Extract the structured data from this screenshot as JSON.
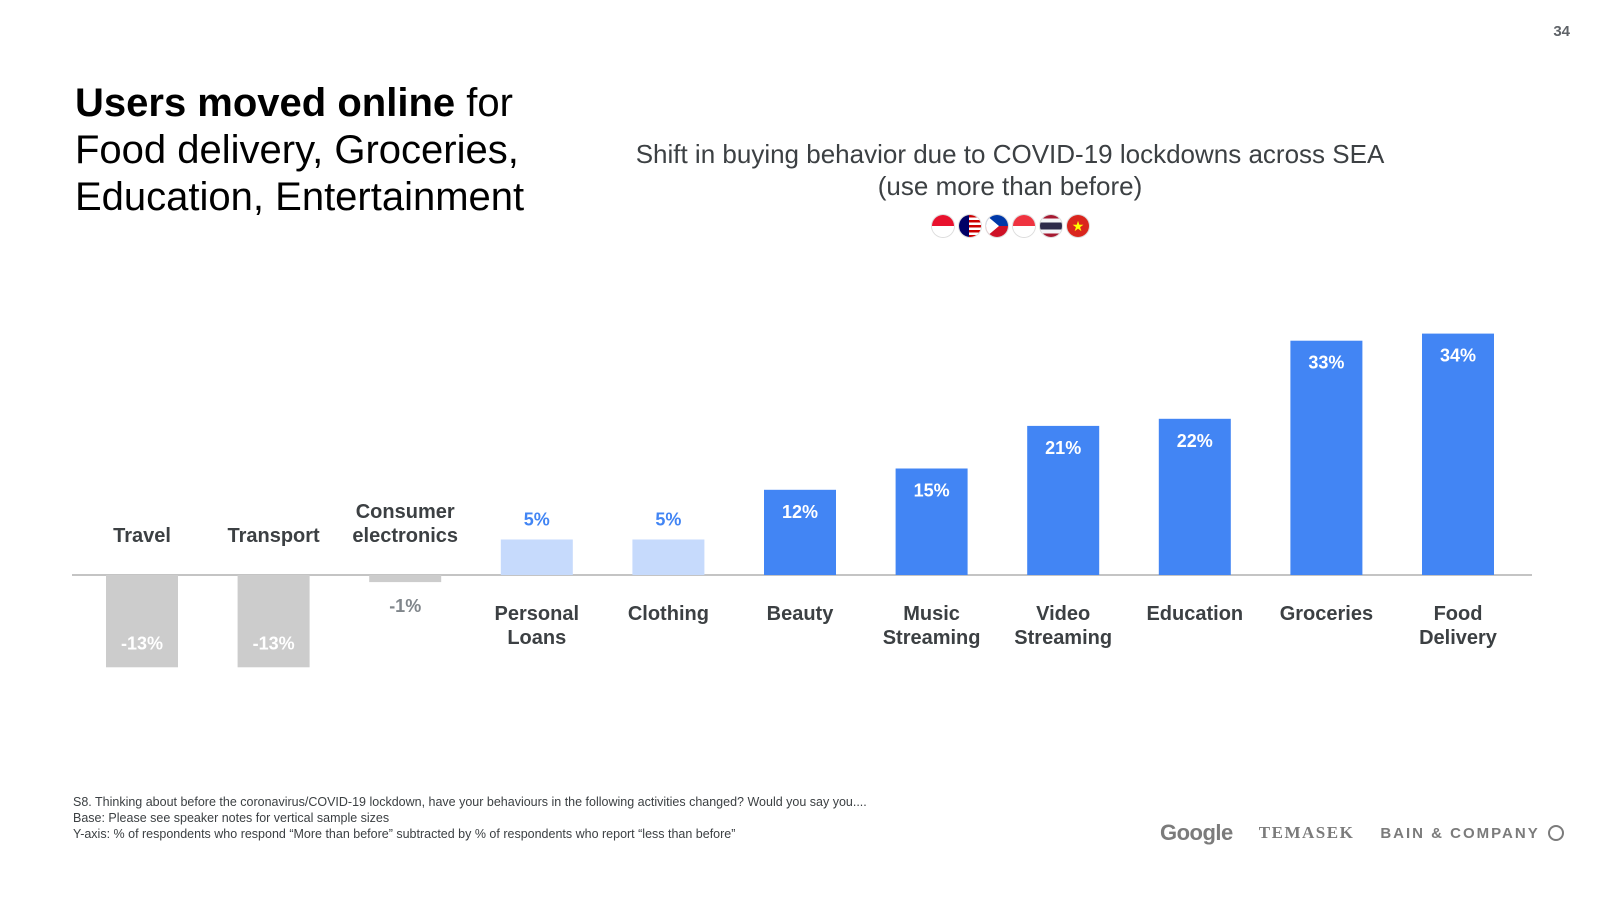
{
  "page": {
    "number": "34"
  },
  "headline": {
    "bold_part": "Users moved online",
    "rest": " for Food delivery, Groceries, Education, Entertainment"
  },
  "flags": [
    {
      "name": "indonesia-flag-icon",
      "colors": [
        "#e8112d",
        "#ffffff"
      ]
    },
    {
      "name": "malaysia-flag-icon",
      "colors": [
        "#cc0000",
        "#ffffff",
        "#010066"
      ]
    },
    {
      "name": "philippines-flag-icon",
      "colors": [
        "#0038a8",
        "#ce1126",
        "#fcd116"
      ]
    },
    {
      "name": "singapore-flag-icon",
      "colors": [
        "#ef3340",
        "#ffffff"
      ]
    },
    {
      "name": "thailand-flag-icon",
      "colors": [
        "#a51931",
        "#f4f5f8",
        "#2d2a4a"
      ]
    },
    {
      "name": "vietnam-flag-icon",
      "colors": [
        "#da251d",
        "#ffff00"
      ]
    }
  ],
  "chart_data": {
    "type": "bar",
    "title": "Shift in buying behavior due to COVID-19 lockdowns across SEA",
    "subtitle": "(use more than before)",
    "categories": [
      "Travel",
      "Transport",
      "Consumer electronics",
      "Personal Loans",
      "Clothing",
      "Beauty",
      "Music Streaming",
      "Video Streaming",
      "Education",
      "Groceries",
      "Food Delivery"
    ],
    "category_lines": [
      [
        "Travel"
      ],
      [
        "Transport"
      ],
      [
        "Consumer",
        "electronics"
      ],
      [
        "Personal",
        "Loans"
      ],
      [
        "Clothing"
      ],
      [
        "Beauty"
      ],
      [
        "Music",
        "Streaming"
      ],
      [
        "Video",
        "Streaming"
      ],
      [
        "Education"
      ],
      [
        "Groceries"
      ],
      [
        "Food",
        "Delivery"
      ]
    ],
    "values": [
      -13,
      -13,
      -1,
      5,
      5,
      12,
      15,
      21,
      22,
      33,
      34
    ],
    "value_labels": [
      "-13%",
      "-13%",
      "-1%",
      "5%",
      "5%",
      "12%",
      "15%",
      "21%",
      "22%",
      "33%",
      "34%"
    ],
    "bar_colors": [
      "#cccccc",
      "#cccccc",
      "#cccccc",
      "#c6dafc",
      "#c6dafc",
      "#4285f4",
      "#4285f4",
      "#4285f4",
      "#4285f4",
      "#4285f4",
      "#4285f4"
    ],
    "label_colors": [
      "#ffffff",
      "#ffffff",
      "#80868b",
      "#4285f4",
      "#4285f4",
      "#ffffff",
      "#ffffff",
      "#ffffff",
      "#ffffff",
      "#ffffff",
      "#ffffff"
    ],
    "ylim": [
      -13,
      34
    ],
    "xlabel": "",
    "ylabel": "",
    "grid": false
  },
  "footnote": {
    "line1": "S8. Thinking about before the coronavirus/COVID-19 lockdown, have your behaviours in the following activities changed? Would you say you....",
    "line2": "Base: Please see speaker notes for vertical sample sizes",
    "line3": "Y-axis: % of respondents who respond “More than before” subtracted by % of respondents who report “less than before”"
  },
  "logos": {
    "google": "Google",
    "temasek": "TEMASEK",
    "bain": "BAIN & COMPANY"
  }
}
